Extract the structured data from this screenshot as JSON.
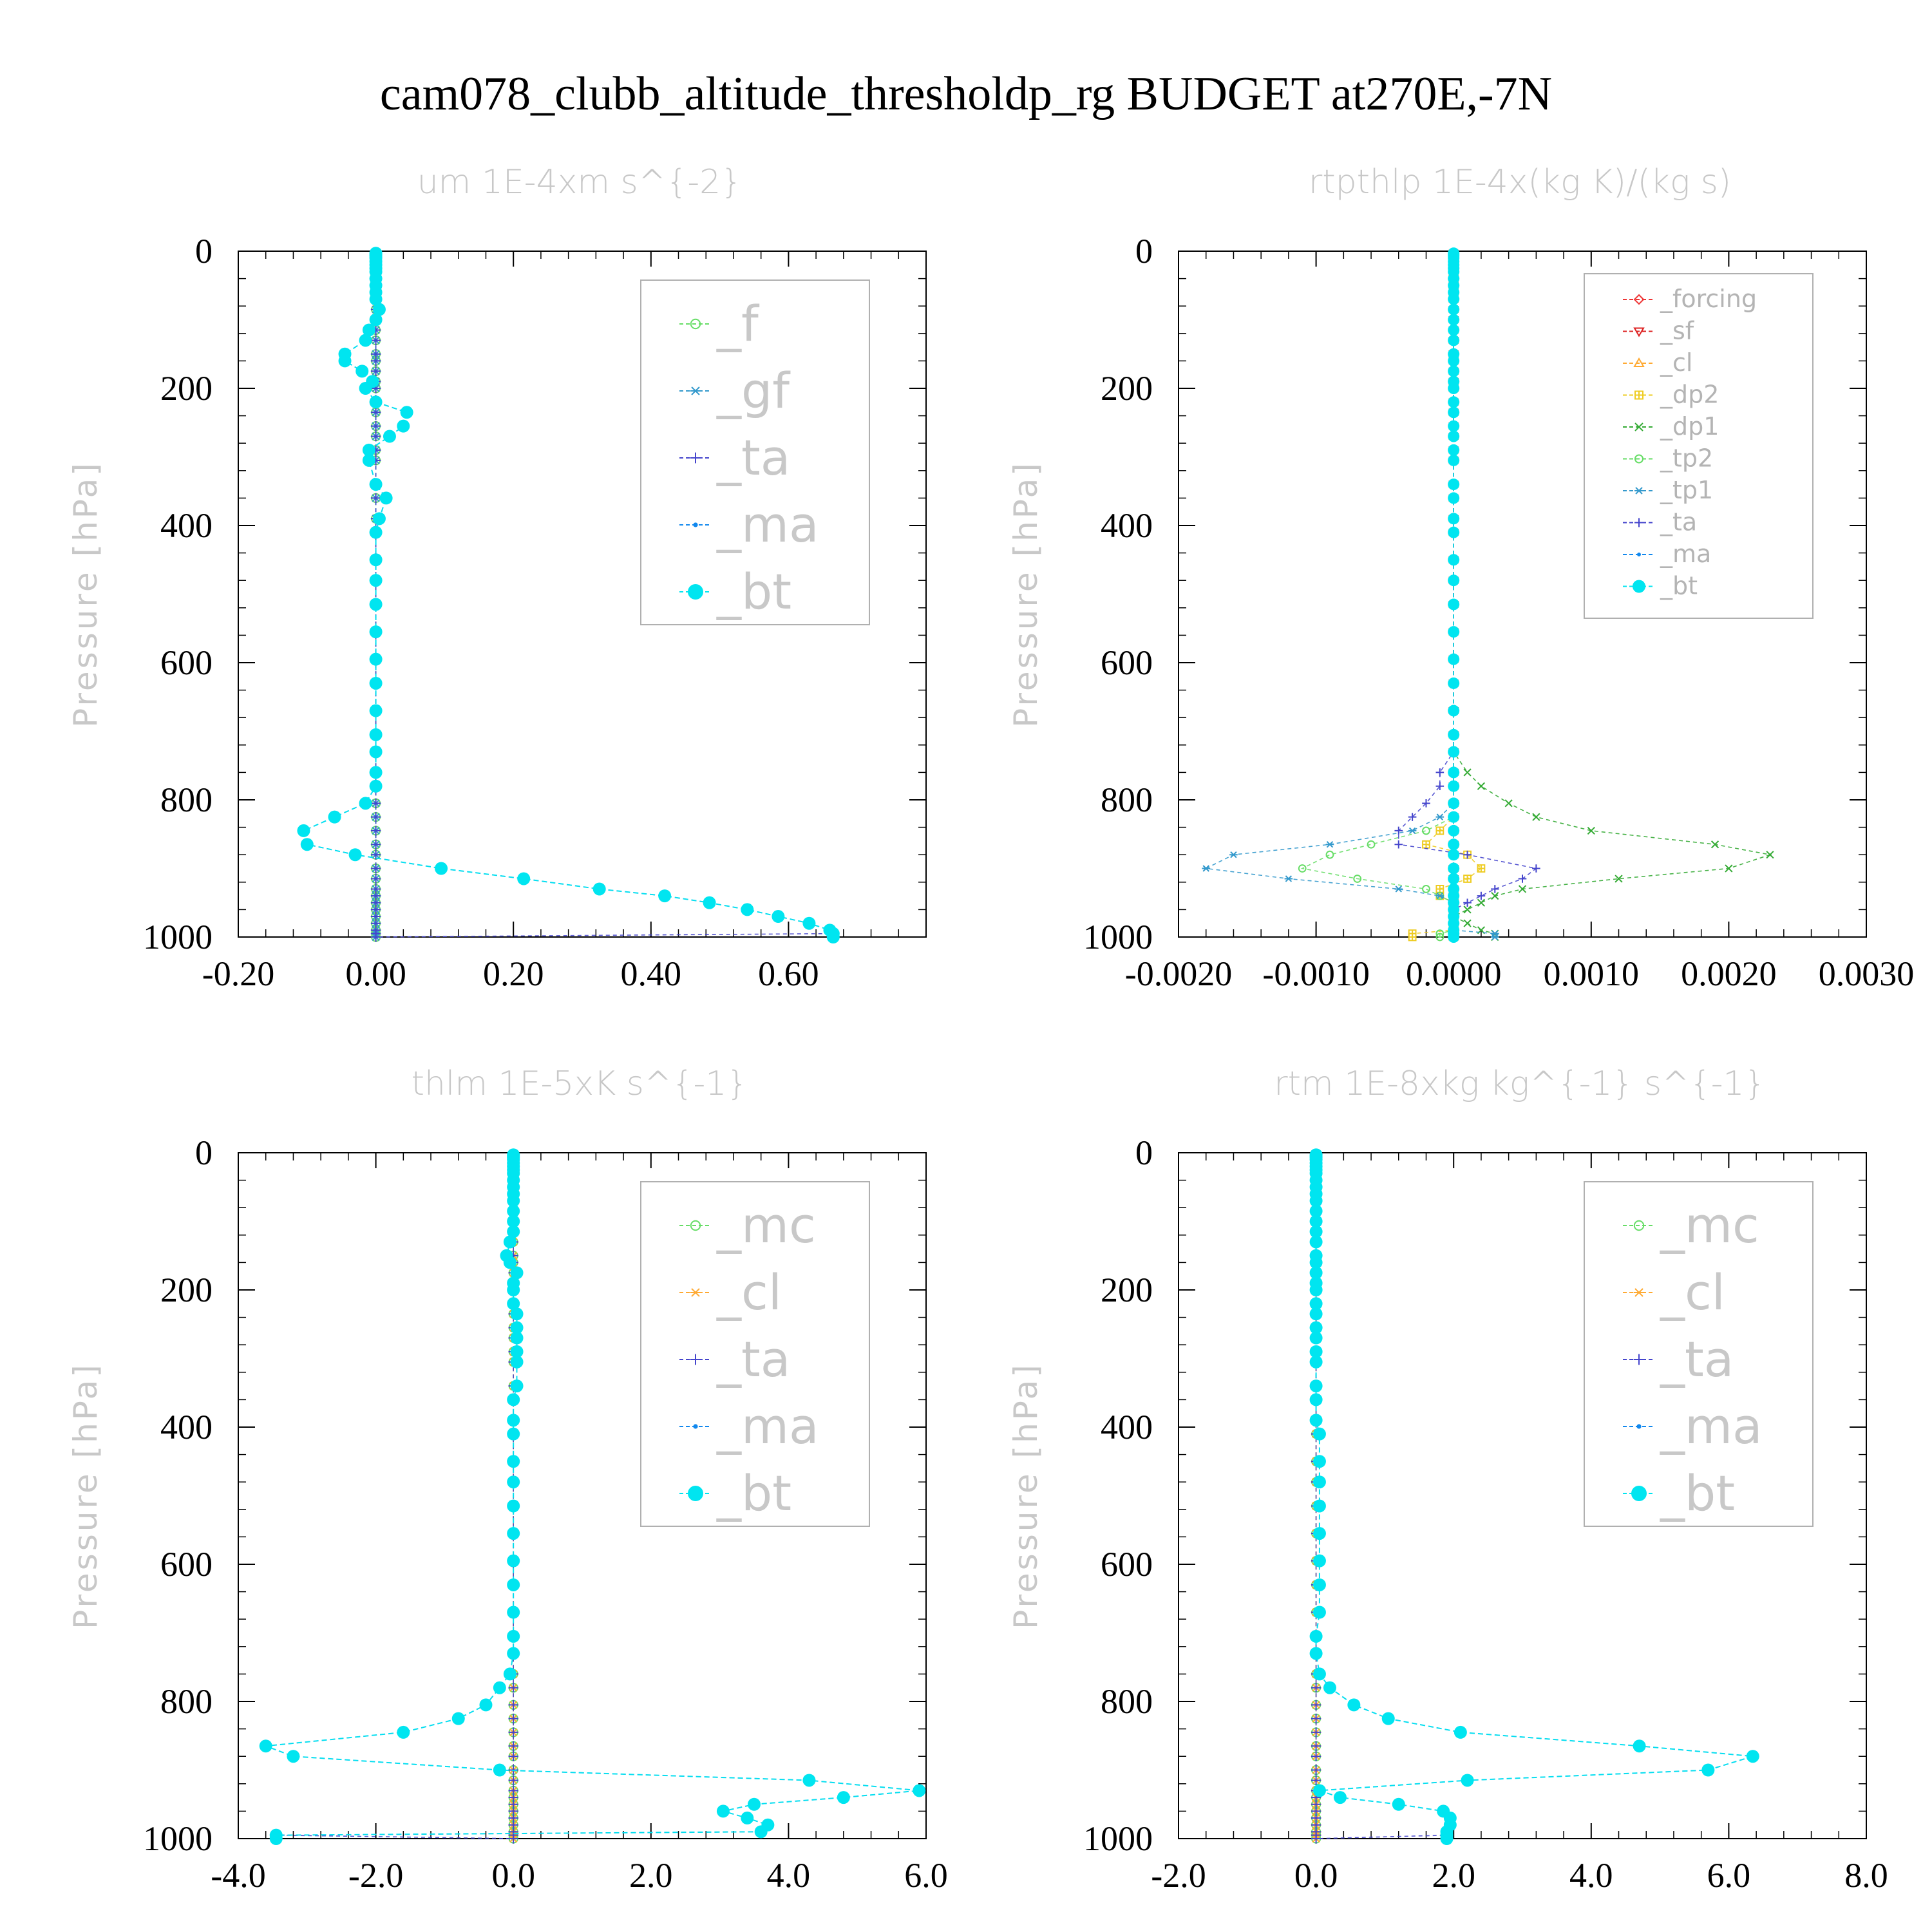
{
  "figure": {
    "title": "cam078_clubb_altitude_thresholdp_rg  BUDGET at270E,-7N"
  },
  "colors": {
    "_f": "#66dd66",
    "_gf": "#3399cc",
    "_ta": "#4444cc",
    "_ma": "#1188ee",
    "_bt": "#00e5f0",
    "_forcing": "#ee3333",
    "_sf": "#dd2222",
    "_cl": "#ffaa33",
    "_dp2": "#eecc22",
    "_dp1": "#33aa33",
    "_tp2": "#66dd66",
    "_tp1": "#3399cc",
    "_mc": "#66dd66"
  },
  "chart_data": [
    {
      "type": "line",
      "title": "um  1E-4xm s^{-2}",
      "ylabel": "Pressure [hPa]",
      "xlim": [
        -0.2,
        0.8
      ],
      "ylim": [
        1000,
        0
      ],
      "xticks": [
        -0.2,
        0.0,
        0.2,
        0.4,
        0.6
      ],
      "xtick_labels": [
        "-0.20",
        "0.00",
        "0.20",
        "0.40",
        "0.60"
      ],
      "yticks": [
        0,
        200,
        400,
        600,
        800,
        1000
      ],
      "ytick_labels": [
        "0",
        "200",
        "400",
        "600",
        "800",
        "1000"
      ],
      "legend_size": "big",
      "legend_loc": "top-right",
      "levels": [
        3,
        5,
        7,
        10,
        15,
        20,
        25,
        30,
        40,
        50,
        60,
        70,
        85,
        100,
        115,
        130,
        150,
        160,
        175,
        190,
        200,
        220,
        235,
        255,
        270,
        290,
        305,
        340,
        360,
        390,
        410,
        450,
        480,
        515,
        555,
        595,
        630,
        670,
        705,
        730,
        760,
        780,
        805,
        825,
        845,
        865,
        880,
        900,
        915,
        930,
        940,
        950,
        960,
        970,
        980,
        990,
        995,
        1000
      ],
      "series": [
        {
          "name": "_f",
          "style": "zero"
        },
        {
          "name": "_gf",
          "style": "zero"
        },
        {
          "name": "_ta",
          "style": "zero_tail",
          "values_tail": [
            {
              "p": 995,
              "x": 0.66
            }
          ]
        },
        {
          "name": "_ma",
          "style": "follow"
        },
        {
          "name": "_bt",
          "style": "main",
          "x": [
            0,
            0,
            0,
            0,
            0,
            0,
            0,
            0,
            0,
            0,
            0,
            0,
            0.005,
            0.0,
            -0.01,
            -0.015,
            -0.045,
            -0.045,
            -0.02,
            -0.005,
            -0.015,
            0.0,
            0.045,
            0.04,
            0.02,
            -0.01,
            -0.01,
            0.0,
            0.015,
            0.005,
            0.0,
            0.0,
            0.0,
            0.0,
            0.0,
            0.0,
            0.0,
            0.0,
            0.0,
            0.0,
            0.0,
            0.0,
            -0.015,
            -0.06,
            -0.105,
            -0.1,
            -0.03,
            0.095,
            0.215,
            0.325,
            0.42,
            0.485,
            0.54,
            0.585,
            0.63,
            0.66,
            0.665,
            0.665
          ]
        }
      ]
    },
    {
      "type": "line",
      "title": "rtpthlp  1E-4x(kg K)/(kg s)",
      "ylabel": "Pressure [hPa]",
      "xlim": [
        -0.002,
        0.003
      ],
      "ylim": [
        1000,
        0
      ],
      "xticks": [
        -0.002,
        -0.001,
        0.0,
        0.001,
        0.002,
        0.003
      ],
      "xtick_labels": [
        "-0.0020",
        "-0.0010",
        "0.0000",
        "0.0010",
        "0.0020",
        "0.0030"
      ],
      "yticks": [
        0,
        200,
        400,
        600,
        800,
        1000
      ],
      "ytick_labels": [
        "0",
        "200",
        "400",
        "600",
        "800",
        "1000"
      ],
      "legend_size": "small",
      "legend_loc": "top-right",
      "levels": [
        3,
        5,
        7,
        10,
        15,
        20,
        25,
        30,
        40,
        50,
        60,
        70,
        85,
        100,
        115,
        130,
        150,
        160,
        175,
        190,
        200,
        220,
        235,
        255,
        270,
        290,
        305,
        340,
        360,
        390,
        410,
        450,
        480,
        515,
        555,
        595,
        630,
        670,
        705,
        730,
        760,
        780,
        805,
        825,
        845,
        865,
        880,
        900,
        915,
        930,
        940,
        950,
        960,
        970,
        980,
        990,
        995,
        1000
      ],
      "series": [
        {
          "name": "_forcing",
          "style": "zero"
        },
        {
          "name": "_sf",
          "style": "zero"
        },
        {
          "name": "_cl",
          "style": "zero"
        },
        {
          "name": "_dp2",
          "style": "profile",
          "x": [
            0,
            0,
            0,
            0,
            0,
            0,
            0,
            0,
            0,
            0,
            0,
            0,
            0,
            0,
            0,
            0,
            0,
            0,
            0,
            0,
            0,
            0,
            0,
            0,
            0,
            0,
            0,
            0,
            0,
            0,
            0,
            0,
            0,
            0,
            0,
            0,
            0,
            0,
            0,
            0,
            0,
            0,
            0,
            0,
            -0.0001,
            -0.0002,
            0.0001,
            0.0002,
            0.0001,
            -0.0001,
            -0.0001,
            0.0,
            0.0,
            0.0,
            0.0,
            0.0,
            -0.0003,
            -0.0003
          ]
        },
        {
          "name": "_dp1",
          "style": "profile",
          "x": [
            0,
            0,
            0,
            0,
            0,
            0,
            0,
            0,
            0,
            0,
            0,
            0,
            0,
            0,
            0,
            0,
            0,
            0,
            0,
            0,
            0,
            0,
            0,
            0,
            0,
            0,
            0,
            0,
            0,
            0,
            0,
            0,
            0,
            0,
            0,
            0,
            0,
            0,
            0,
            0,
            0.0001,
            0.0002,
            0.0004,
            0.0006,
            0.001,
            0.0019,
            0.0023,
            0.002,
            0.0012,
            0.0005,
            0.0003,
            0.0002,
            0.0001,
            0.0,
            0.0001,
            0.0002,
            0.0003,
            0.0003
          ]
        },
        {
          "name": "_tp2",
          "style": "profile",
          "x": [
            0,
            0,
            0,
            0,
            0,
            0,
            0,
            0,
            0,
            0,
            0,
            0,
            0,
            0,
            0,
            0,
            0,
            0,
            0,
            0,
            0,
            0,
            0,
            0,
            0,
            0,
            0,
            0,
            0,
            0,
            0,
            0,
            0,
            0,
            0,
            0,
            0,
            0,
            0,
            0,
            0,
            0,
            0,
            0,
            -0.0002,
            -0.0006,
            -0.0009,
            -0.0011,
            -0.0007,
            -0.0002,
            -0.0001,
            0.0,
            0.0,
            0.0,
            0.0,
            0.0,
            -0.0001,
            -0.0001
          ]
        },
        {
          "name": "_tp1",
          "style": "profile",
          "x": [
            0,
            0,
            0,
            0,
            0,
            0,
            0,
            0,
            0,
            0,
            0,
            0,
            0,
            0,
            0,
            0,
            0,
            0,
            0,
            0,
            0,
            0,
            0,
            0,
            0,
            0,
            0,
            0,
            0,
            0,
            0,
            0,
            0,
            0,
            0,
            0,
            0,
            0,
            0,
            0,
            0,
            0,
            0,
            -0.0001,
            -0.0003,
            -0.0009,
            -0.0016,
            -0.0018,
            -0.0012,
            -0.0004,
            -0.0001,
            0.0,
            0.0,
            0.0,
            0.0,
            0.0,
            0.0003,
            0.0003
          ]
        },
        {
          "name": "_ta",
          "style": "profile",
          "x": [
            0,
            0,
            0,
            0,
            0,
            0,
            0,
            0,
            0,
            0,
            0,
            0,
            0,
            0,
            0,
            0,
            0,
            0,
            0,
            0,
            0,
            0,
            0,
            0,
            0,
            0,
            0,
            0,
            0,
            0,
            0,
            0,
            0,
            0,
            0,
            0,
            0,
            0,
            0,
            0,
            -0.0001,
            -0.0001,
            -0.0002,
            -0.0003,
            -0.0004,
            -0.0004,
            0.0001,
            0.0006,
            0.0005,
            0.0003,
            0.0002,
            0.0001,
            0.0,
            0.0,
            0.0,
            0.0,
            0.0,
            0.0
          ]
        },
        {
          "name": "_ma",
          "style": "zero"
        },
        {
          "name": "_bt",
          "style": "zero"
        }
      ]
    },
    {
      "type": "line",
      "title": "thlm  1E-5xK s^{-1}",
      "ylabel": "Pressure [hPa]",
      "xlim": [
        -4.0,
        6.0
      ],
      "ylim": [
        1000,
        0
      ],
      "xticks": [
        -4,
        -2,
        0,
        2,
        4,
        6
      ],
      "xtick_labels": [
        "-4.0",
        "-2.0",
        "0.0",
        "2.0",
        "4.0",
        "6.0"
      ],
      "yticks": [
        0,
        200,
        400,
        600,
        800,
        1000
      ],
      "ytick_labels": [
        "0",
        "200",
        "400",
        "600",
        "800",
        "1000"
      ],
      "legend_size": "big",
      "legend_loc": "top-right",
      "levels": [
        3,
        5,
        7,
        10,
        15,
        20,
        25,
        30,
        40,
        50,
        60,
        70,
        85,
        100,
        115,
        130,
        150,
        160,
        175,
        190,
        200,
        220,
        235,
        255,
        270,
        290,
        305,
        340,
        360,
        390,
        410,
        450,
        480,
        515,
        555,
        595,
        630,
        670,
        705,
        730,
        760,
        780,
        805,
        825,
        845,
        865,
        880,
        900,
        915,
        930,
        940,
        950,
        960,
        970,
        980,
        990,
        995,
        1000
      ],
      "series": [
        {
          "name": "_mc",
          "style": "zero"
        },
        {
          "name": "_cl",
          "style": "zero"
        },
        {
          "name": "_ta",
          "style": "zero_tail",
          "values_tail": [
            {
              "p": 995,
              "x": -3.4
            }
          ]
        },
        {
          "name": "_ma",
          "style": "follow"
        },
        {
          "name": "_bt",
          "style": "main",
          "x": [
            0,
            0,
            0,
            0,
            0,
            0,
            0,
            0,
            0,
            0,
            0,
            0,
            0.0,
            0.0,
            0.0,
            -0.05,
            -0.1,
            -0.05,
            0.05,
            0.0,
            0.0,
            0.0,
            0.05,
            0.05,
            0.05,
            0.05,
            0.05,
            0.05,
            0.0,
            0.0,
            0.0,
            0.0,
            0.0,
            0.0,
            0.0,
            0.0,
            0.0,
            0.0,
            0.0,
            0.0,
            -0.05,
            -0.2,
            -0.4,
            -0.8,
            -1.6,
            -3.6,
            -3.2,
            -0.2,
            4.3,
            5.9,
            4.8,
            3.5,
            3.05,
            3.4,
            3.7,
            3.6,
            -3.45,
            -3.45
          ]
        }
      ]
    },
    {
      "type": "line",
      "title": "rtm  1E-8xkg kg^{-1} s^{-1}",
      "ylabel": "Pressure [hPa]",
      "xlim": [
        -2.0,
        8.0
      ],
      "ylim": [
        1000,
        0
      ],
      "xticks": [
        -2,
        0,
        2,
        4,
        6,
        8
      ],
      "xtick_labels": [
        "-2.0",
        "0.0",
        "2.0",
        "4.0",
        "6.0",
        "8.0"
      ],
      "yticks": [
        0,
        200,
        400,
        600,
        800,
        1000
      ],
      "ytick_labels": [
        "0",
        "200",
        "400",
        "600",
        "800",
        "1000"
      ],
      "legend_size": "big",
      "legend_loc": "top-right",
      "levels": [
        3,
        5,
        7,
        10,
        15,
        20,
        25,
        30,
        40,
        50,
        60,
        70,
        85,
        100,
        115,
        130,
        150,
        160,
        175,
        190,
        200,
        220,
        235,
        255,
        270,
        290,
        305,
        340,
        360,
        390,
        410,
        450,
        480,
        515,
        555,
        595,
        630,
        670,
        705,
        730,
        760,
        780,
        805,
        825,
        845,
        865,
        880,
        900,
        915,
        930,
        940,
        950,
        960,
        970,
        980,
        990,
        995,
        1000
      ],
      "series": [
        {
          "name": "_mc",
          "style": "zero"
        },
        {
          "name": "_cl",
          "style": "zero"
        },
        {
          "name": "_ta",
          "style": "zero_tail",
          "values_tail": [
            {
              "p": 995,
              "x": 1.9
            }
          ]
        },
        {
          "name": "_ma",
          "style": "follow"
        },
        {
          "name": "_bt",
          "style": "main",
          "x": [
            0,
            0,
            0,
            0,
            0,
            0,
            0,
            0,
            0,
            0,
            0,
            0,
            0,
            0,
            0,
            0,
            0,
            0,
            0,
            0,
            0,
            0,
            0,
            0,
            0,
            0,
            0,
            0,
            0,
            0,
            0.05,
            0.05,
            0.05,
            0.05,
            0.05,
            0.05,
            0.05,
            0.05,
            0.0,
            0.0,
            0.05,
            0.2,
            0.55,
            1.05,
            2.1,
            4.7,
            6.35,
            5.7,
            2.2,
            0.05,
            0.35,
            1.2,
            1.85,
            1.95,
            1.95,
            1.9,
            1.9,
            1.9
          ]
        }
      ]
    }
  ]
}
